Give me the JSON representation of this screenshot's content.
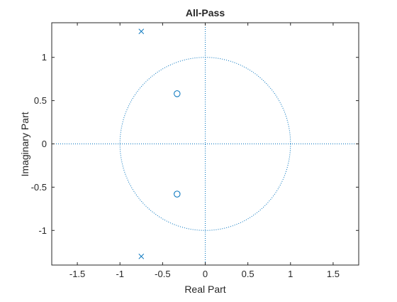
{
  "chart_data": {
    "type": "scatter",
    "title": "All-Pass",
    "xlabel": "Real Part",
    "ylabel": "Imaginary Part",
    "xlim": [
      -1.8,
      1.8
    ],
    "ylim": [
      -1.4,
      1.4
    ],
    "xticks": [
      -1.5,
      -1,
      -0.5,
      0,
      0.5,
      1,
      1.5
    ],
    "xtick_labels": [
      "-1.5",
      "-1",
      "-0.5",
      "0",
      "0.5",
      "1",
      "1.5"
    ],
    "yticks": [
      -1,
      -0.5,
      0,
      0.5,
      1
    ],
    "ytick_labels": [
      "-1",
      "-0.5",
      "0",
      "0.5",
      "1"
    ],
    "grid": false,
    "unit_circle": true,
    "reference_lines": "dotted lines at x=0 and y=0",
    "color": "#0072BD",
    "series": [
      {
        "marker": "o",
        "points": [
          [
            -0.33,
            0.58
          ],
          [
            -0.33,
            -0.58
          ]
        ]
      },
      {
        "marker": "x",
        "points": [
          [
            -0.75,
            1.3
          ],
          [
            -0.75,
            -1.3
          ]
        ]
      }
    ]
  }
}
